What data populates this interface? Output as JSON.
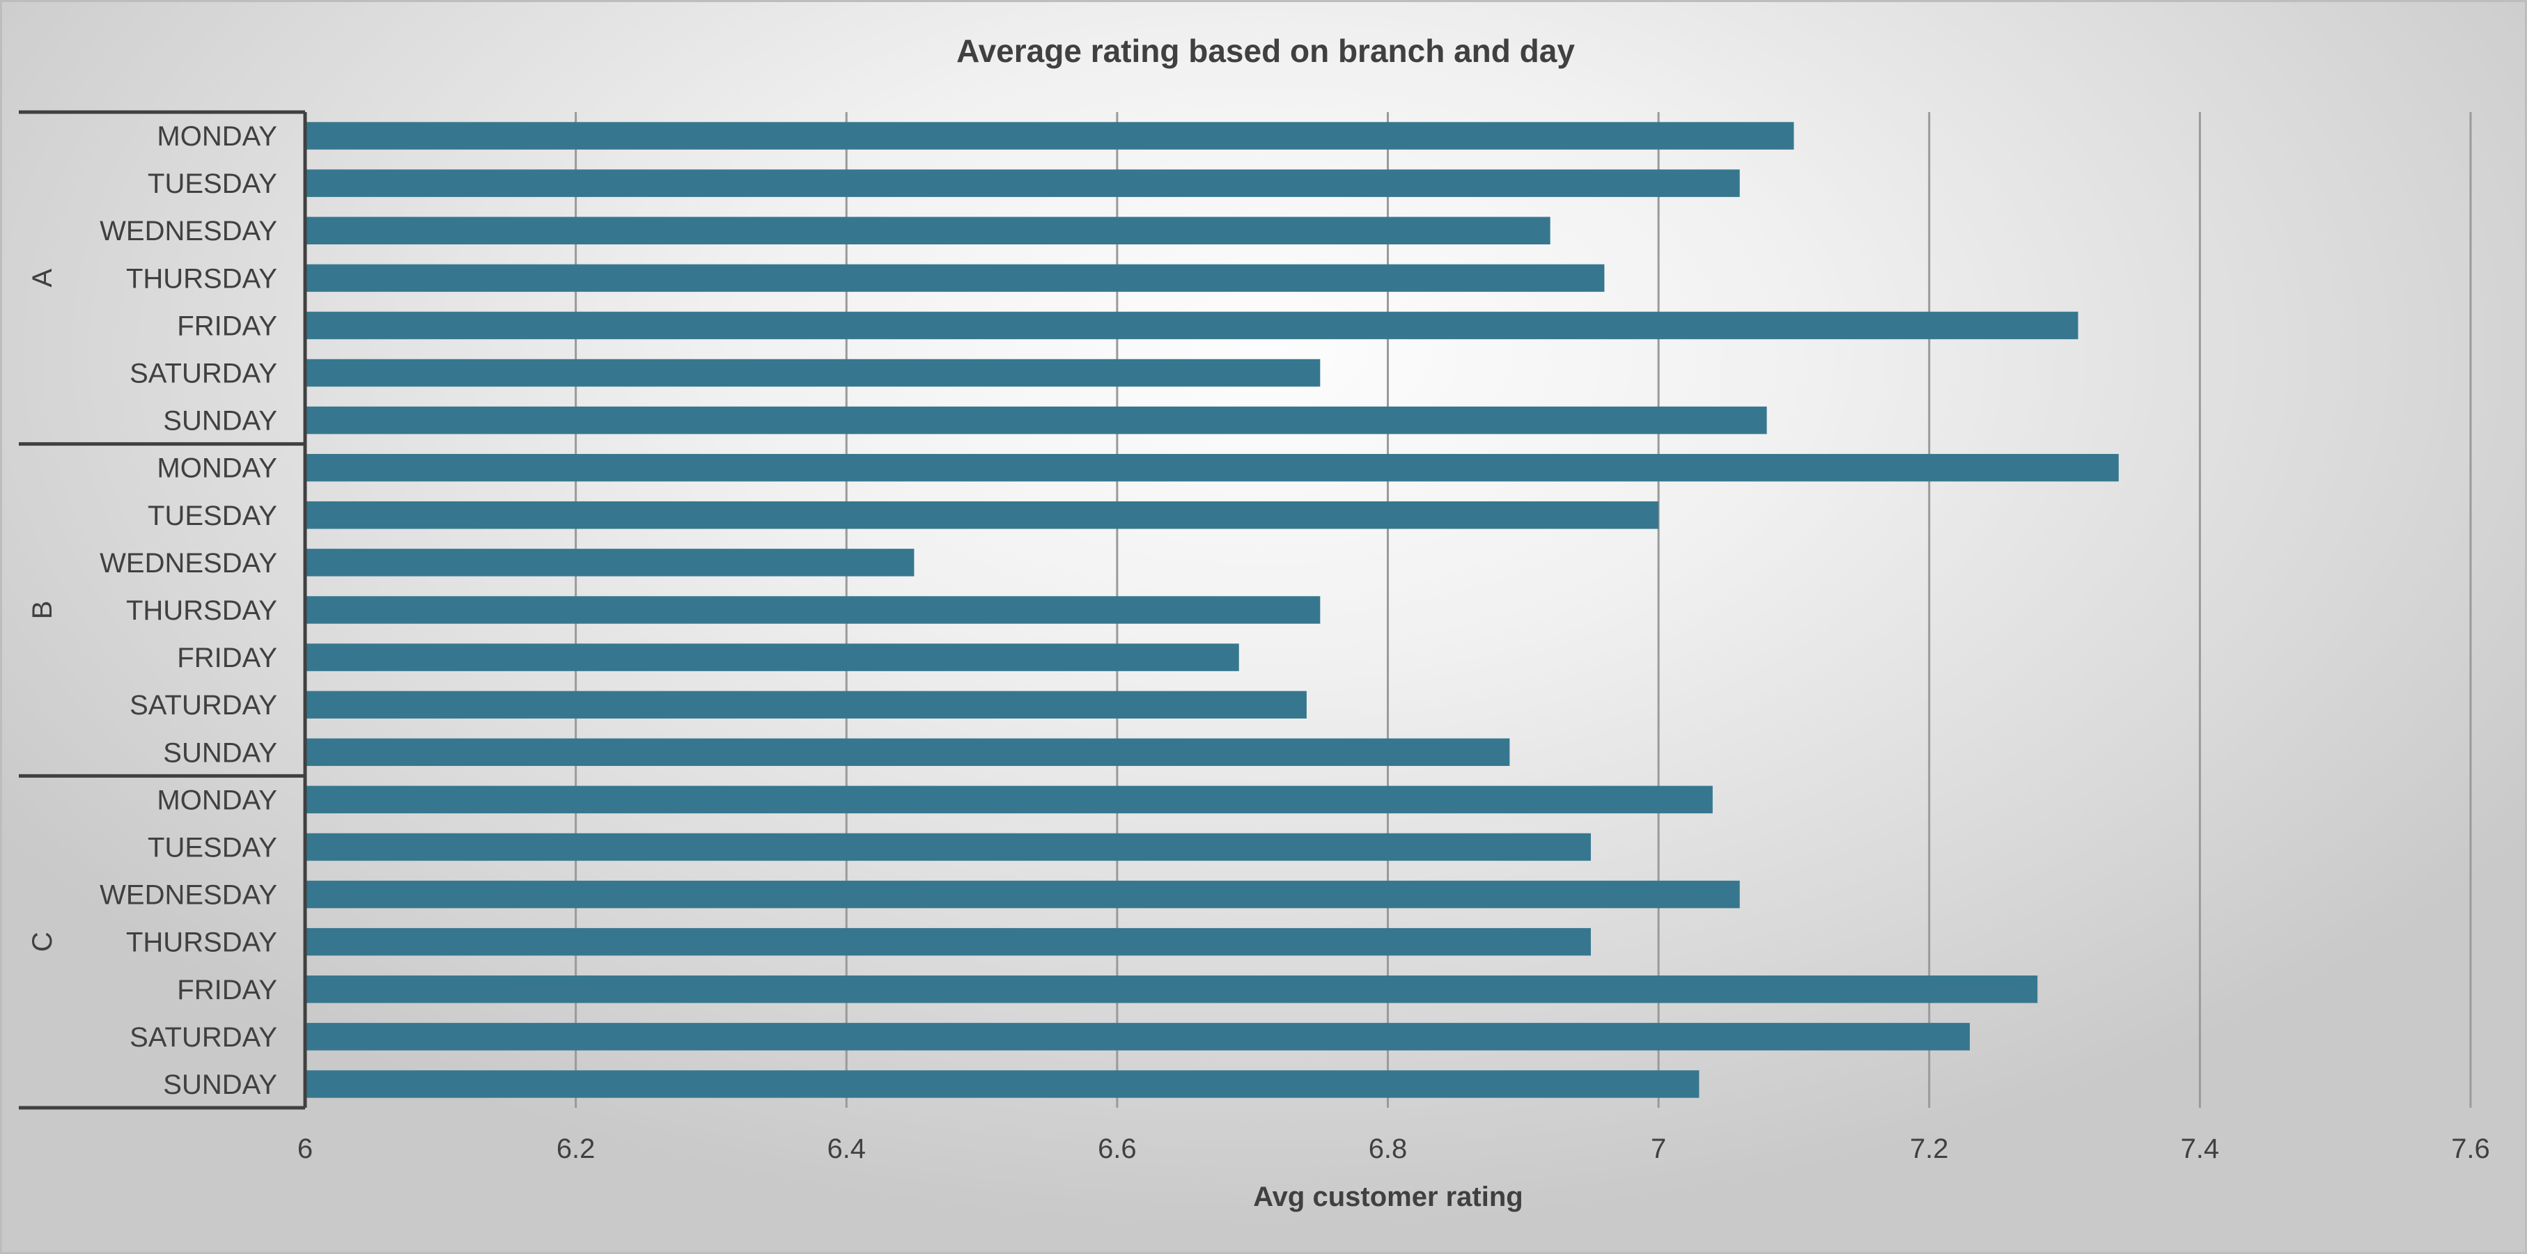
{
  "chart_data": {
    "type": "bar",
    "orientation": "horizontal",
    "title": "Average rating based on branch and day",
    "xlabel": "Avg customer rating",
    "ylabel": "",
    "xlim": [
      6,
      7.6
    ],
    "x_ticks": [
      "6",
      "6.2",
      "6.4",
      "6.6",
      "6.8",
      "7",
      "7.2",
      "7.4",
      "7.6"
    ],
    "x_tick_values": [
      6,
      6.2,
      6.4,
      6.6,
      6.8,
      7,
      7.2,
      7.4,
      7.6
    ],
    "grid": "vertical",
    "legend": "none",
    "bar_color": "#36778f",
    "groups": [
      {
        "name": "A",
        "categories": [
          "MONDAY",
          "TUESDAY",
          "WEDNESDAY",
          "THURSDAY",
          "FRIDAY",
          "SATURDAY",
          "SUNDAY"
        ],
        "values": [
          7.1,
          7.06,
          6.92,
          6.96,
          7.31,
          6.75,
          7.08
        ]
      },
      {
        "name": "B",
        "categories": [
          "MONDAY",
          "TUESDAY",
          "WEDNESDAY",
          "THURSDAY",
          "FRIDAY",
          "SATURDAY",
          "SUNDAY"
        ],
        "values": [
          7.34,
          7.0,
          6.45,
          6.75,
          6.69,
          6.74,
          6.89
        ]
      },
      {
        "name": "C",
        "categories": [
          "MONDAY",
          "TUESDAY",
          "WEDNESDAY",
          "THURSDAY",
          "FRIDAY",
          "SATURDAY",
          "SUNDAY"
        ],
        "values": [
          7.04,
          6.95,
          7.06,
          6.95,
          7.28,
          7.23,
          7.03
        ]
      }
    ]
  }
}
